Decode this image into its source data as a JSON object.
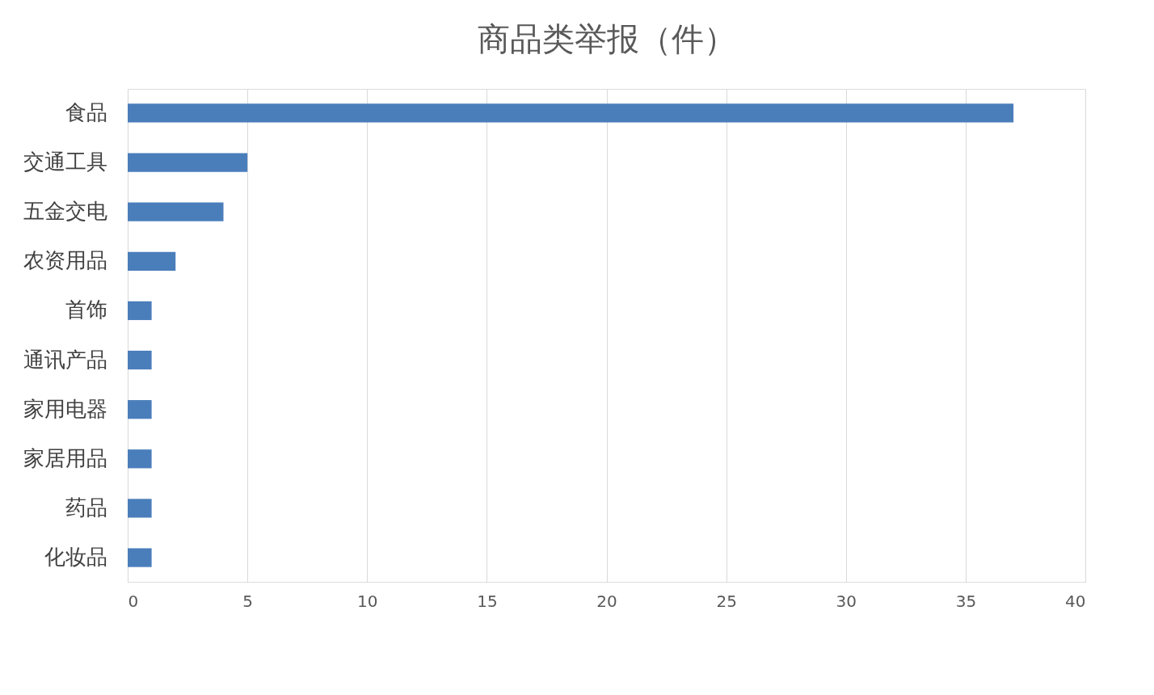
{
  "chart_data": {
    "type": "bar",
    "orientation": "horizontal",
    "title": "商品类举报（件）",
    "categories": [
      "食品",
      "交通工具",
      "五金交电",
      "农资用品",
      "首饰",
      "通讯产品",
      "家用电器",
      "家居用品",
      "药品",
      "化妆品"
    ],
    "values": [
      37,
      5,
      4,
      2,
      1,
      1,
      1,
      1,
      1,
      1
    ],
    "color": "#4a7ebb",
    "xlim": [
      0,
      40
    ],
    "xticks": [
      0,
      5,
      10,
      15,
      20,
      25,
      30,
      35,
      40
    ],
    "grid": "x"
  }
}
